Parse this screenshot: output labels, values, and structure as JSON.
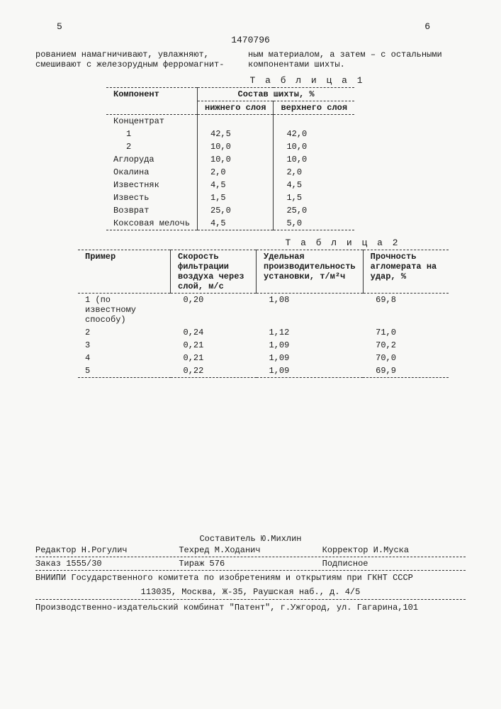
{
  "page_left": "5",
  "page_right": "6",
  "doc_id": "1470796",
  "text_left": "рованием намагничивают, увлажняют, смешивают с железорудным ферромагнит-",
  "text_right": "ным материалом, а затем – с остальными компонентами шихты.",
  "table1": {
    "caption": "Т а б л и ц а  1",
    "col0": "Компонент",
    "col_group": "Состав шихты, %",
    "sub1": "нижнего слоя",
    "sub2": "верхнего слоя",
    "rows": [
      {
        "c0": "Концентрат",
        "c1": "",
        "c2": ""
      },
      {
        "c0": "1",
        "c1": "42,5",
        "c2": "42,0"
      },
      {
        "c0": "2",
        "c1": "10,0",
        "c2": "10,0"
      },
      {
        "c0": "Аглоруда",
        "c1": "10,0",
        "c2": "10,0"
      },
      {
        "c0": "Окалина",
        "c1": "2,0",
        "c2": "2,0"
      },
      {
        "c0": "Известняк",
        "c1": "4,5",
        "c2": "4,5"
      },
      {
        "c0": "Известь",
        "c1": "1,5",
        "c2": "1,5"
      },
      {
        "c0": "Возврат",
        "c1": "25,0",
        "c2": "25,0"
      },
      {
        "c0": "Коксовая мелочь",
        "c1": "4,5",
        "c2": "5,0"
      }
    ]
  },
  "table2": {
    "caption": "Т а б л и ц а  2",
    "h0": "Пример",
    "h1": "Скорость фильтрации воздуха через слой, м/с",
    "h2": "Удельная производительность установки, т/м²ч",
    "h3": "Прочность агломерата на удар, %",
    "rows": [
      {
        "c0": "1 (по известному способу)",
        "c1": "0,20",
        "c2": "1,08",
        "c3": "69,8"
      },
      {
        "c0": "2",
        "c1": "0,24",
        "c2": "1,12",
        "c3": "71,0"
      },
      {
        "c0": "3",
        "c1": "0,21",
        "c2": "1,09",
        "c3": "70,2"
      },
      {
        "c0": "4",
        "c1": "0,21",
        "c2": "1,09",
        "c3": "70,0"
      },
      {
        "c0": "5",
        "c1": "0,22",
        "c2": "1,09",
        "c3": "69,9"
      }
    ]
  },
  "credits": {
    "compiler": "Составитель Ю.Михлин",
    "editor": "Редактор Н.Рогулич",
    "tech": "Техред М.Ходанич",
    "corrector": "Корректор И.Муска",
    "order": "Заказ 1555/30",
    "circulation": "Тираж 576",
    "signed": "Подписное",
    "org": "ВНИИПИ Государственного комитета по изобретениям и открытиям при ГКНТ СССР",
    "addr": "113035, Москва, Ж-35, Раушская наб., д. 4/5",
    "publisher": "Производственно-издательский комбинат \"Патент\", г.Ужгород, ул. Гагарина,101"
  }
}
